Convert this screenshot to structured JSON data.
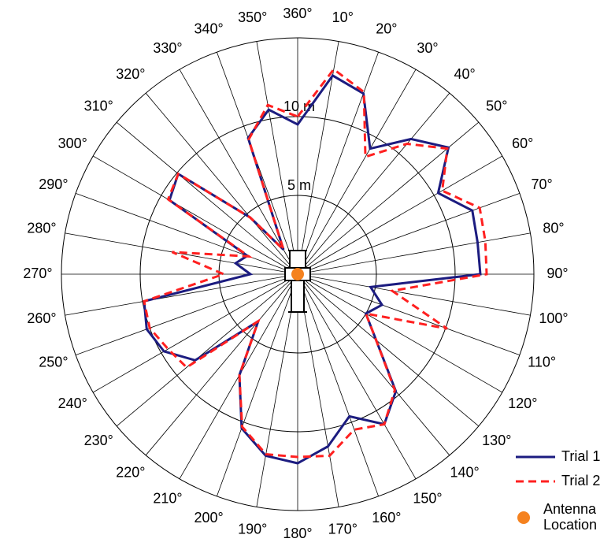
{
  "chart_data": {
    "type": "polar-line",
    "x": [
      0,
      10,
      20,
      30,
      40,
      50,
      60,
      70,
      80,
      90,
      100,
      110,
      120,
      130,
      140,
      150,
      160,
      170,
      180,
      190,
      200,
      210,
      220,
      230,
      240,
      250,
      260,
      270,
      280,
      290,
      300,
      310,
      320,
      330,
      340,
      350
    ],
    "xticks": [
      {
        "value": 0,
        "label": "360°"
      },
      {
        "value": 10,
        "label": "10°"
      },
      {
        "value": 20,
        "label": "20°"
      },
      {
        "value": 30,
        "label": "30°"
      },
      {
        "value": 40,
        "label": "40°"
      },
      {
        "value": 50,
        "label": "50°"
      },
      {
        "value": 60,
        "label": "60°"
      },
      {
        "value": 70,
        "label": "70°"
      },
      {
        "value": 80,
        "label": "80°"
      },
      {
        "value": 90,
        "label": "90°"
      },
      {
        "value": 100,
        "label": "100°"
      },
      {
        "value": 110,
        "label": "110°"
      },
      {
        "value": 120,
        "label": "120°"
      },
      {
        "value": 130,
        "label": "130°"
      },
      {
        "value": 140,
        "label": "140°"
      },
      {
        "value": 150,
        "label": "150°"
      },
      {
        "value": 160,
        "label": "160°"
      },
      {
        "value": 170,
        "label": "170°"
      },
      {
        "value": 180,
        "label": "180°"
      },
      {
        "value": 190,
        "label": "190°"
      },
      {
        "value": 200,
        "label": "200°"
      },
      {
        "value": 210,
        "label": "210°"
      },
      {
        "value": 220,
        "label": "220°"
      },
      {
        "value": 230,
        "label": "230°"
      },
      {
        "value": 240,
        "label": "240°"
      },
      {
        "value": 250,
        "label": "250°"
      },
      {
        "value": 260,
        "label": "260°"
      },
      {
        "value": 270,
        "label": "270°"
      },
      {
        "value": 280,
        "label": "280°"
      },
      {
        "value": 290,
        "label": "290°"
      },
      {
        "value": 300,
        "label": "300°"
      },
      {
        "value": 310,
        "label": "310°"
      },
      {
        "value": 320,
        "label": "320°"
      },
      {
        "value": 330,
        "label": "330°"
      },
      {
        "value": 340,
        "label": "340°"
      },
      {
        "value": 350,
        "label": "350°"
      }
    ],
    "ylim": [
      0,
      15
    ],
    "yticks": [
      {
        "value": 5,
        "label": "5 m"
      },
      {
        "value": 10,
        "label": "10 m"
      }
    ],
    "grid": true,
    "legend": "lower right",
    "series": [
      {
        "name": "Trial 1",
        "color": "#1c1c80",
        "dash": "solid",
        "values": [
          9.5,
          12.8,
          12.2,
          9.2,
          11.2,
          12.5,
          10.3,
          11.8,
          11.6,
          11.6,
          4.7,
          5.7,
          5.0,
          6.5,
          9.7,
          11.0,
          9.6,
          11.1,
          12.0,
          11.7,
          10.4,
          7.4,
          3.9,
          8.5,
          9.8,
          10.2,
          9.9,
          3.0,
          4.0,
          3.4,
          9.4,
          9.9,
          4.7,
          1.8,
          9.2,
          10.6
        ]
      },
      {
        "name": "Trial 2",
        "color": "#ff2020",
        "dash": "dashed",
        "values": [
          10.0,
          13.2,
          12.3,
          8.6,
          10.8,
          12.4,
          10.6,
          12.3,
          12.1,
          12.0,
          6.1,
          10.1,
          5.0,
          6.5,
          9.6,
          11.0,
          10.5,
          11.7,
          11.6,
          11.6,
          10.3,
          7.4,
          3.9,
          9.2,
          9.5,
          10.0,
          9.9,
          4.7,
          8.1,
          3.3,
          9.5,
          9.9,
          4.7,
          1.8,
          9.1,
          10.9
        ]
      }
    ],
    "markers": [
      {
        "name": "Antenna Location",
        "color": "#f5821f",
        "r": 0,
        "theta": 0
      }
    ]
  }
}
